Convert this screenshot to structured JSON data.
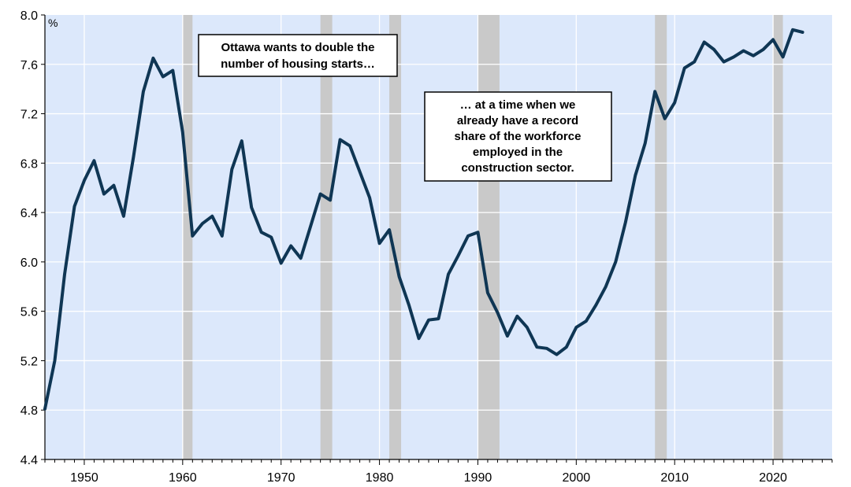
{
  "chart_data": {
    "type": "line",
    "title": "",
    "xlabel": "",
    "ylabel": "",
    "unit_label": "%",
    "xlim": [
      1946,
      2026
    ],
    "ylim": [
      4.4,
      8.0
    ],
    "x_ticks": [
      1950,
      1960,
      1970,
      1980,
      1990,
      2000,
      2010,
      2020
    ],
    "x_tick_labels": [
      "1950",
      "1960",
      "1970",
      "1980",
      "1990",
      "2000",
      "2010",
      "2020"
    ],
    "y_ticks": [
      4.4,
      4.8,
      5.2,
      5.6,
      6.0,
      6.4,
      6.8,
      7.2,
      7.6,
      8.0
    ],
    "y_tick_labels": [
      "4.4",
      "4.8",
      "5.2",
      "5.6",
      "6.0",
      "6.4",
      "6.8",
      "7.2",
      "7.6",
      "8.0"
    ],
    "grid": true,
    "recessions": [
      [
        1960,
        1961
      ],
      [
        1974,
        1975.2
      ],
      [
        1981,
        1982.2
      ],
      [
        1990,
        1992.2
      ],
      [
        2008,
        2009.2
      ],
      [
        2020,
        2021
      ]
    ],
    "series": [
      {
        "x": [
          1946,
          1947,
          1948,
          1949,
          1950,
          1951,
          1952,
          1953,
          1954,
          1955,
          1956,
          1957,
          1958,
          1959,
          1960,
          1961,
          1962,
          1963,
          1964,
          1965,
          1966,
          1967,
          1968,
          1969,
          1970,
          1971,
          1972,
          1973,
          1974,
          1975,
          1976,
          1977,
          1978,
          1979,
          1980,
          1981,
          1982,
          1983,
          1984,
          1985,
          1986,
          1987,
          1988,
          1989,
          1990,
          1991,
          1992,
          1993,
          1994,
          1995,
          1996,
          1997,
          1998,
          1999,
          2000,
          2001,
          2002,
          2003,
          2004,
          2005,
          2006,
          2007,
          2008,
          2009,
          2010,
          2011,
          2012,
          2013,
          2014,
          2015,
          2016,
          2017,
          2018,
          2019,
          2020,
          2021,
          2022,
          2023
        ],
        "values": [
          4.81,
          5.2,
          5.9,
          6.45,
          6.66,
          6.82,
          6.55,
          6.62,
          6.37,
          6.85,
          7.38,
          7.65,
          7.5,
          7.55,
          7.05,
          6.21,
          6.31,
          6.37,
          6.21,
          6.75,
          6.98,
          6.44,
          6.24,
          6.2,
          5.99,
          6.13,
          6.03,
          6.29,
          6.55,
          6.5,
          6.99,
          6.94,
          6.73,
          6.52,
          6.15,
          6.26,
          5.88,
          5.65,
          5.38,
          5.53,
          5.54,
          5.9,
          6.05,
          6.21,
          6.24,
          5.75,
          5.59,
          5.4,
          5.56,
          5.47,
          5.31,
          5.3,
          5.25,
          5.31,
          5.47,
          5.52,
          5.65,
          5.8,
          6.0,
          6.32,
          6.7,
          6.96,
          7.38,
          7.16,
          7.29,
          7.57,
          7.62,
          7.78,
          7.72,
          7.62,
          7.66,
          7.71,
          7.67,
          7.72,
          7.8,
          7.66,
          7.88,
          7.86
        ]
      }
    ],
    "annotations": [
      {
        "lines": [
          "Ottawa wants to double the",
          "number of housing starts…"
        ]
      },
      {
        "lines": [
          "… at a time when we",
          "already have a record",
          "share of the workforce",
          "employed in the",
          "construction sector."
        ]
      }
    ],
    "colors": {
      "background": "#dce8fb",
      "recession": "#c9c9c9",
      "line": "#0f3654",
      "grid": "#ffffff"
    }
  }
}
